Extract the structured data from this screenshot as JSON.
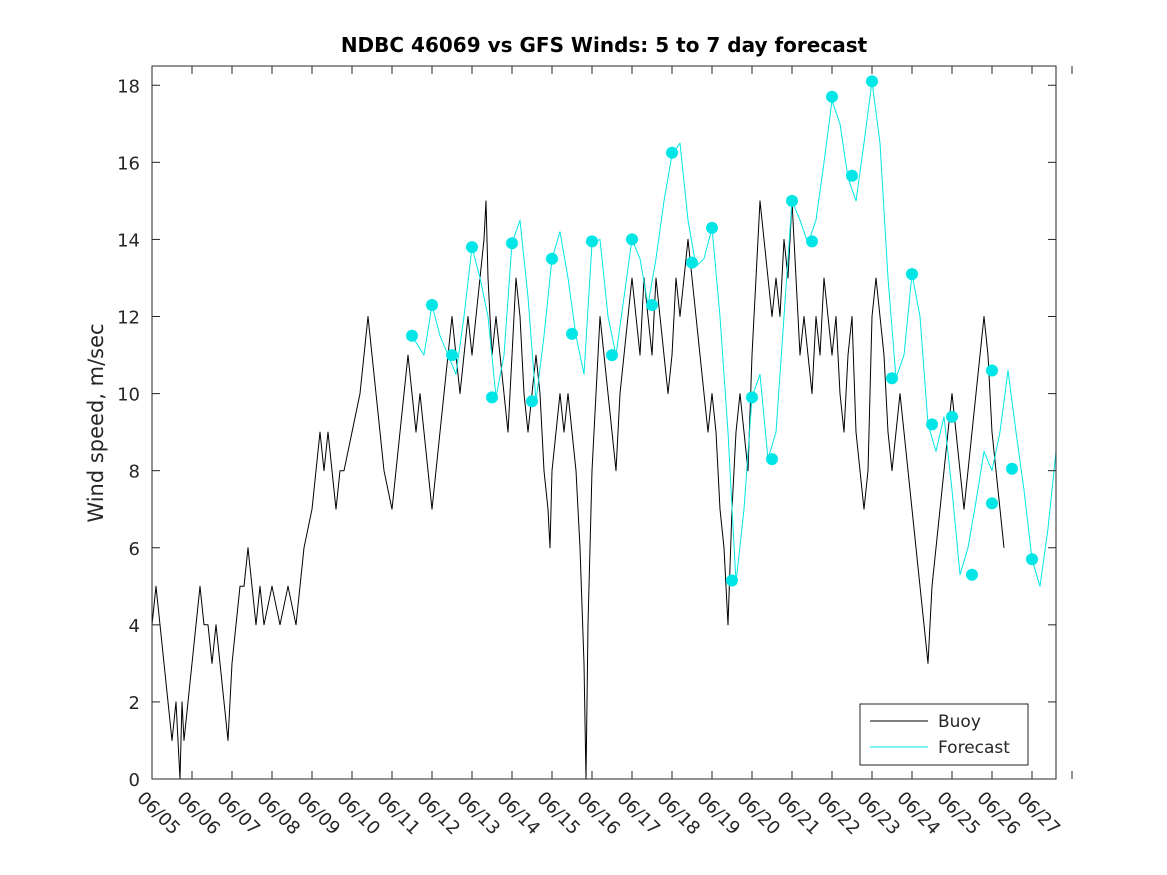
{
  "chart_data": {
    "type": "line",
    "title": "NDBC 46069 vs GFS Winds: 5 to 7 day forecast",
    "xlabel": "",
    "ylabel": "Wind speed, m/sec",
    "x_tick_labels": [
      "06/05",
      "06/06",
      "06/07",
      "06/08",
      "06/09",
      "06/10",
      "06/11",
      "06/12",
      "06/13",
      "06/14",
      "06/15",
      "06/16",
      "06/17",
      "06/18",
      "06/19",
      "06/20",
      "06/21",
      "06/22",
      "06/23",
      "06/24",
      "06/25",
      "06/26",
      "06/27"
    ],
    "xlim_days": [
      -1,
      21.6
    ],
    "ylim": [
      0,
      18.5
    ],
    "y_ticks": [
      0,
      2,
      4,
      6,
      8,
      10,
      12,
      14,
      16,
      18
    ],
    "grid": false,
    "legend_position": "bottom-right",
    "legend": [
      {
        "label": "Buoy",
        "color": "#000000"
      },
      {
        "label": "Forecast",
        "color": "#00e6e6"
      }
    ],
    "series": [
      {
        "name": "Buoy",
        "color": "#000000",
        "points": [
          [
            -1.0,
            4
          ],
          [
            -0.9,
            5
          ],
          [
            -0.8,
            4
          ],
          [
            -0.7,
            3
          ],
          [
            -0.6,
            2
          ],
          [
            -0.5,
            1
          ],
          [
            -0.4,
            2
          ],
          [
            -0.3,
            0
          ],
          [
            -0.25,
            2
          ],
          [
            -0.2,
            1
          ],
          [
            -0.1,
            2
          ],
          [
            0.0,
            3
          ],
          [
            0.1,
            4
          ],
          [
            0.2,
            5
          ],
          [
            0.3,
            4
          ],
          [
            0.4,
            4
          ],
          [
            0.5,
            3
          ],
          [
            0.6,
            4
          ],
          [
            0.7,
            3
          ],
          [
            0.8,
            2
          ],
          [
            0.9,
            1
          ],
          [
            1.0,
            3
          ],
          [
            1.1,
            4
          ],
          [
            1.2,
            5
          ],
          [
            1.3,
            5
          ],
          [
            1.4,
            6
          ],
          [
            1.5,
            5
          ],
          [
            1.6,
            4
          ],
          [
            1.7,
            5
          ],
          [
            1.8,
            4
          ],
          [
            2.0,
            5
          ],
          [
            2.2,
            4
          ],
          [
            2.4,
            5
          ],
          [
            2.6,
            4
          ],
          [
            2.8,
            6
          ],
          [
            3.0,
            7
          ],
          [
            3.1,
            8
          ],
          [
            3.2,
            9
          ],
          [
            3.3,
            8
          ],
          [
            3.4,
            9
          ],
          [
            3.5,
            8
          ],
          [
            3.6,
            7
          ],
          [
            3.7,
            8
          ],
          [
            3.8,
            8
          ],
          [
            4.0,
            9
          ],
          [
            4.2,
            10
          ],
          [
            4.3,
            11
          ],
          [
            4.4,
            12
          ],
          [
            4.5,
            11
          ],
          [
            4.6,
            10
          ],
          [
            4.7,
            9
          ],
          [
            4.8,
            8
          ],
          [
            5.0,
            7
          ],
          [
            5.1,
            8
          ],
          [
            5.2,
            9
          ],
          [
            5.3,
            10
          ],
          [
            5.4,
            11
          ],
          [
            5.5,
            10
          ],
          [
            5.6,
            9
          ],
          [
            5.7,
            10
          ],
          [
            5.8,
            9
          ],
          [
            5.9,
            8
          ],
          [
            6.0,
            7
          ],
          [
            6.1,
            8
          ],
          [
            6.2,
            9
          ],
          [
            6.3,
            10
          ],
          [
            6.4,
            11
          ],
          [
            6.5,
            12
          ],
          [
            6.6,
            11
          ],
          [
            6.7,
            10
          ],
          [
            6.8,
            11
          ],
          [
            6.9,
            12
          ],
          [
            7.0,
            11
          ],
          [
            7.1,
            12
          ],
          [
            7.2,
            13
          ],
          [
            7.3,
            14
          ],
          [
            7.35,
            15
          ],
          [
            7.4,
            13
          ],
          [
            7.5,
            11
          ],
          [
            7.6,
            12
          ],
          [
            7.7,
            11
          ],
          [
            7.8,
            10
          ],
          [
            7.9,
            9
          ],
          [
            8.0,
            11
          ],
          [
            8.1,
            13
          ],
          [
            8.2,
            12
          ],
          [
            8.3,
            10
          ],
          [
            8.4,
            9
          ],
          [
            8.5,
            10
          ],
          [
            8.6,
            11
          ],
          [
            8.7,
            10
          ],
          [
            8.8,
            8
          ],
          [
            8.9,
            7
          ],
          [
            8.95,
            6
          ],
          [
            9.0,
            8
          ],
          [
            9.1,
            9
          ],
          [
            9.2,
            10
          ],
          [
            9.3,
            9
          ],
          [
            9.4,
            10
          ],
          [
            9.5,
            9
          ],
          [
            9.6,
            8
          ],
          [
            9.7,
            6
          ],
          [
            9.8,
            3
          ],
          [
            9.85,
            0
          ],
          [
            9.9,
            4
          ],
          [
            10.0,
            8
          ],
          [
            10.1,
            10
          ],
          [
            10.2,
            12
          ],
          [
            10.3,
            11
          ],
          [
            10.4,
            10
          ],
          [
            10.5,
            9
          ],
          [
            10.6,
            8
          ],
          [
            10.7,
            10
          ],
          [
            10.8,
            11
          ],
          [
            10.9,
            12
          ],
          [
            11.0,
            13
          ],
          [
            11.1,
            12
          ],
          [
            11.2,
            11
          ],
          [
            11.3,
            13
          ],
          [
            11.4,
            12
          ],
          [
            11.5,
            11
          ],
          [
            11.6,
            13
          ],
          [
            11.7,
            12
          ],
          [
            11.8,
            11
          ],
          [
            11.9,
            10
          ],
          [
            12.0,
            11
          ],
          [
            12.1,
            13
          ],
          [
            12.2,
            12
          ],
          [
            12.3,
            13
          ],
          [
            12.4,
            14
          ],
          [
            12.5,
            13
          ],
          [
            12.6,
            12
          ],
          [
            12.7,
            11
          ],
          [
            12.8,
            10
          ],
          [
            12.9,
            9
          ],
          [
            13.0,
            10
          ],
          [
            13.1,
            9
          ],
          [
            13.2,
            7
          ],
          [
            13.3,
            6
          ],
          [
            13.4,
            4
          ],
          [
            13.5,
            7
          ],
          [
            13.6,
            9
          ],
          [
            13.7,
            10
          ],
          [
            13.8,
            9
          ],
          [
            13.9,
            8
          ],
          [
            14.0,
            11
          ],
          [
            14.1,
            13
          ],
          [
            14.2,
            15
          ],
          [
            14.3,
            14
          ],
          [
            14.4,
            13
          ],
          [
            14.5,
            12
          ],
          [
            14.6,
            13
          ],
          [
            14.7,
            12
          ],
          [
            14.8,
            14
          ],
          [
            14.9,
            13
          ],
          [
            15.0,
            15
          ],
          [
            15.1,
            13
          ],
          [
            15.2,
            11
          ],
          [
            15.3,
            12
          ],
          [
            15.4,
            11
          ],
          [
            15.5,
            10
          ],
          [
            15.6,
            12
          ],
          [
            15.7,
            11
          ],
          [
            15.8,
            13
          ],
          [
            15.9,
            12
          ],
          [
            16.0,
            11
          ],
          [
            16.1,
            12
          ],
          [
            16.2,
            10
          ],
          [
            16.3,
            9
          ],
          [
            16.4,
            11
          ],
          [
            16.5,
            12
          ],
          [
            16.6,
            9
          ],
          [
            16.7,
            8
          ],
          [
            16.8,
            7
          ],
          [
            16.9,
            8
          ],
          [
            17.0,
            12
          ],
          [
            17.1,
            13
          ],
          [
            17.2,
            12
          ],
          [
            17.3,
            11
          ],
          [
            17.4,
            9
          ],
          [
            17.5,
            8
          ],
          [
            17.6,
            9
          ],
          [
            17.7,
            10
          ],
          [
            17.8,
            9
          ],
          [
            17.9,
            8
          ],
          [
            18.0,
            7
          ],
          [
            18.1,
            6
          ],
          [
            18.2,
            5
          ],
          [
            18.3,
            4
          ],
          [
            18.4,
            3
          ],
          [
            18.5,
            5
          ],
          [
            18.6,
            6
          ],
          [
            18.7,
            7
          ],
          [
            18.8,
            8
          ],
          [
            18.9,
            9
          ],
          [
            19.0,
            10
          ],
          [
            19.1,
            9
          ],
          [
            19.2,
            8
          ],
          [
            19.3,
            7
          ],
          [
            19.4,
            8
          ],
          [
            19.5,
            9
          ],
          [
            19.6,
            10
          ],
          [
            19.7,
            11
          ],
          [
            19.8,
            12
          ],
          [
            19.9,
            11
          ],
          [
            20.0,
            9
          ],
          [
            20.1,
            8
          ],
          [
            20.2,
            7
          ],
          [
            20.3,
            6
          ]
        ]
      },
      {
        "name": "Forecast",
        "color": "#00e6e6",
        "points": [
          [
            5.5,
            11.5
          ],
          [
            5.8,
            11.0
          ],
          [
            6.0,
            12.3
          ],
          [
            6.2,
            11.5
          ],
          [
            6.4,
            11.0
          ],
          [
            6.6,
            10.5
          ],
          [
            6.8,
            12.0
          ],
          [
            7.0,
            13.8
          ],
          [
            7.2,
            13.0
          ],
          [
            7.4,
            12.0
          ],
          [
            7.6,
            9.9
          ],
          [
            7.8,
            11.0
          ],
          [
            8.0,
            13.9
          ],
          [
            8.2,
            14.5
          ],
          [
            8.4,
            12.5
          ],
          [
            8.6,
            9.8
          ],
          [
            8.8,
            11.5
          ],
          [
            9.0,
            13.5
          ],
          [
            9.2,
            14.2
          ],
          [
            9.4,
            13.0
          ],
          [
            9.6,
            11.5
          ],
          [
            9.8,
            10.5
          ],
          [
            10.0,
            13.9
          ],
          [
            10.2,
            14.0
          ],
          [
            10.4,
            12.0
          ],
          [
            10.6,
            11.0
          ],
          [
            10.8,
            12.5
          ],
          [
            11.0,
            14.0
          ],
          [
            11.2,
            13.5
          ],
          [
            11.4,
            12.3
          ],
          [
            11.6,
            13.5
          ],
          [
            11.8,
            15.0
          ],
          [
            12.0,
            16.2
          ],
          [
            12.2,
            16.5
          ],
          [
            12.4,
            14.5
          ],
          [
            12.6,
            13.3
          ],
          [
            12.8,
            13.5
          ],
          [
            13.0,
            14.3
          ],
          [
            13.2,
            12.0
          ],
          [
            13.4,
            9.0
          ],
          [
            13.6,
            5.1
          ],
          [
            13.8,
            7.0
          ],
          [
            14.0,
            9.9
          ],
          [
            14.2,
            10.5
          ],
          [
            14.4,
            8.3
          ],
          [
            14.6,
            9.0
          ],
          [
            14.8,
            12.0
          ],
          [
            15.0,
            15.0
          ],
          [
            15.2,
            14.5
          ],
          [
            15.4,
            13.9
          ],
          [
            15.6,
            14.5
          ],
          [
            15.8,
            16.0
          ],
          [
            16.0,
            17.6
          ],
          [
            16.2,
            17.0
          ],
          [
            16.4,
            15.6
          ],
          [
            16.6,
            15.0
          ],
          [
            16.8,
            16.5
          ],
          [
            17.0,
            18.1
          ],
          [
            17.2,
            16.5
          ],
          [
            17.4,
            13.0
          ],
          [
            17.6,
            10.4
          ],
          [
            17.8,
            11.0
          ],
          [
            18.0,
            13.1
          ],
          [
            18.2,
            12.0
          ],
          [
            18.4,
            9.2
          ],
          [
            18.6,
            8.5
          ],
          [
            18.8,
            9.4
          ],
          [
            19.0,
            7.5
          ],
          [
            19.2,
            5.3
          ],
          [
            19.4,
            6.0
          ],
          [
            19.6,
            7.2
          ],
          [
            19.8,
            8.5
          ],
          [
            20.0,
            8.0
          ],
          [
            20.2,
            9.0
          ],
          [
            20.4,
            10.6
          ],
          [
            20.6,
            9.0
          ],
          [
            20.8,
            7.5
          ],
          [
            21.0,
            5.7
          ],
          [
            21.2,
            5.0
          ],
          [
            21.4,
            6.5
          ],
          [
            21.6,
            8.5
          ]
        ]
      }
    ],
    "forecast_markers": [
      [
        5.5,
        11.5
      ],
      [
        6.0,
        12.3
      ],
      [
        6.5,
        11.0
      ],
      [
        7.0,
        13.8
      ],
      [
        7.5,
        9.9
      ],
      [
        8.0,
        13.9
      ],
      [
        8.5,
        9.8
      ],
      [
        9.0,
        13.5
      ],
      [
        9.5,
        11.55
      ],
      [
        10.0,
        13.95
      ],
      [
        10.5,
        11.0
      ],
      [
        11.0,
        14.0
      ],
      [
        11.5,
        12.3
      ],
      [
        12.0,
        16.25
      ],
      [
        12.5,
        13.4
      ],
      [
        13.0,
        14.3
      ],
      [
        13.5,
        5.15
      ],
      [
        14.0,
        9.9
      ],
      [
        14.5,
        8.3
      ],
      [
        15.0,
        15.0
      ],
      [
        15.5,
        13.95
      ],
      [
        16.0,
        17.7
      ],
      [
        16.5,
        15.65
      ],
      [
        17.0,
        18.1
      ],
      [
        17.5,
        10.4
      ],
      [
        18.0,
        13.1
      ],
      [
        18.5,
        9.2
      ],
      [
        19.0,
        9.4
      ],
      [
        19.5,
        5.3
      ],
      [
        20.0,
        7.15
      ],
      [
        20.5,
        8.05
      ],
      [
        20.0,
        10.6
      ],
      [
        21.0,
        5.7
      ]
    ]
  }
}
